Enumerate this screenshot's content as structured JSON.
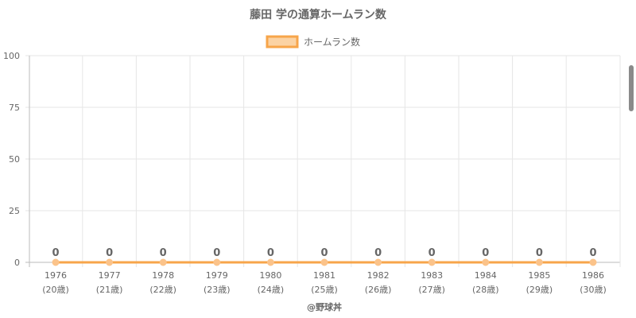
{
  "chart_data": {
    "type": "line",
    "title": "藤田 学の通算ホームラン数",
    "categories": [
      "1976",
      "1977",
      "1978",
      "1979",
      "1980",
      "1981",
      "1982",
      "1983",
      "1984",
      "1985",
      "1986"
    ],
    "category_sublabels": [
      "(20歳)",
      "(21歳)",
      "(22歳)",
      "(23歳)",
      "(24歳)",
      "(25歳)",
      "(26歳)",
      "(27歳)",
      "(28歳)",
      "(29歳)",
      "(30歳)"
    ],
    "series": [
      {
        "name": "ホームラン数",
        "values": [
          0,
          0,
          0,
          0,
          0,
          0,
          0,
          0,
          0,
          0,
          0
        ]
      }
    ],
    "ylim": [
      0,
      100
    ],
    "yticks": [
      0,
      25,
      50,
      75,
      100
    ],
    "legend_position": "top",
    "grid": true,
    "colors": {
      "line": "#f7a54a",
      "fill": "#fbd3a4",
      "point": "#fbc38a",
      "grid": "#e6e6e6"
    }
  },
  "credit": "@野球丼"
}
